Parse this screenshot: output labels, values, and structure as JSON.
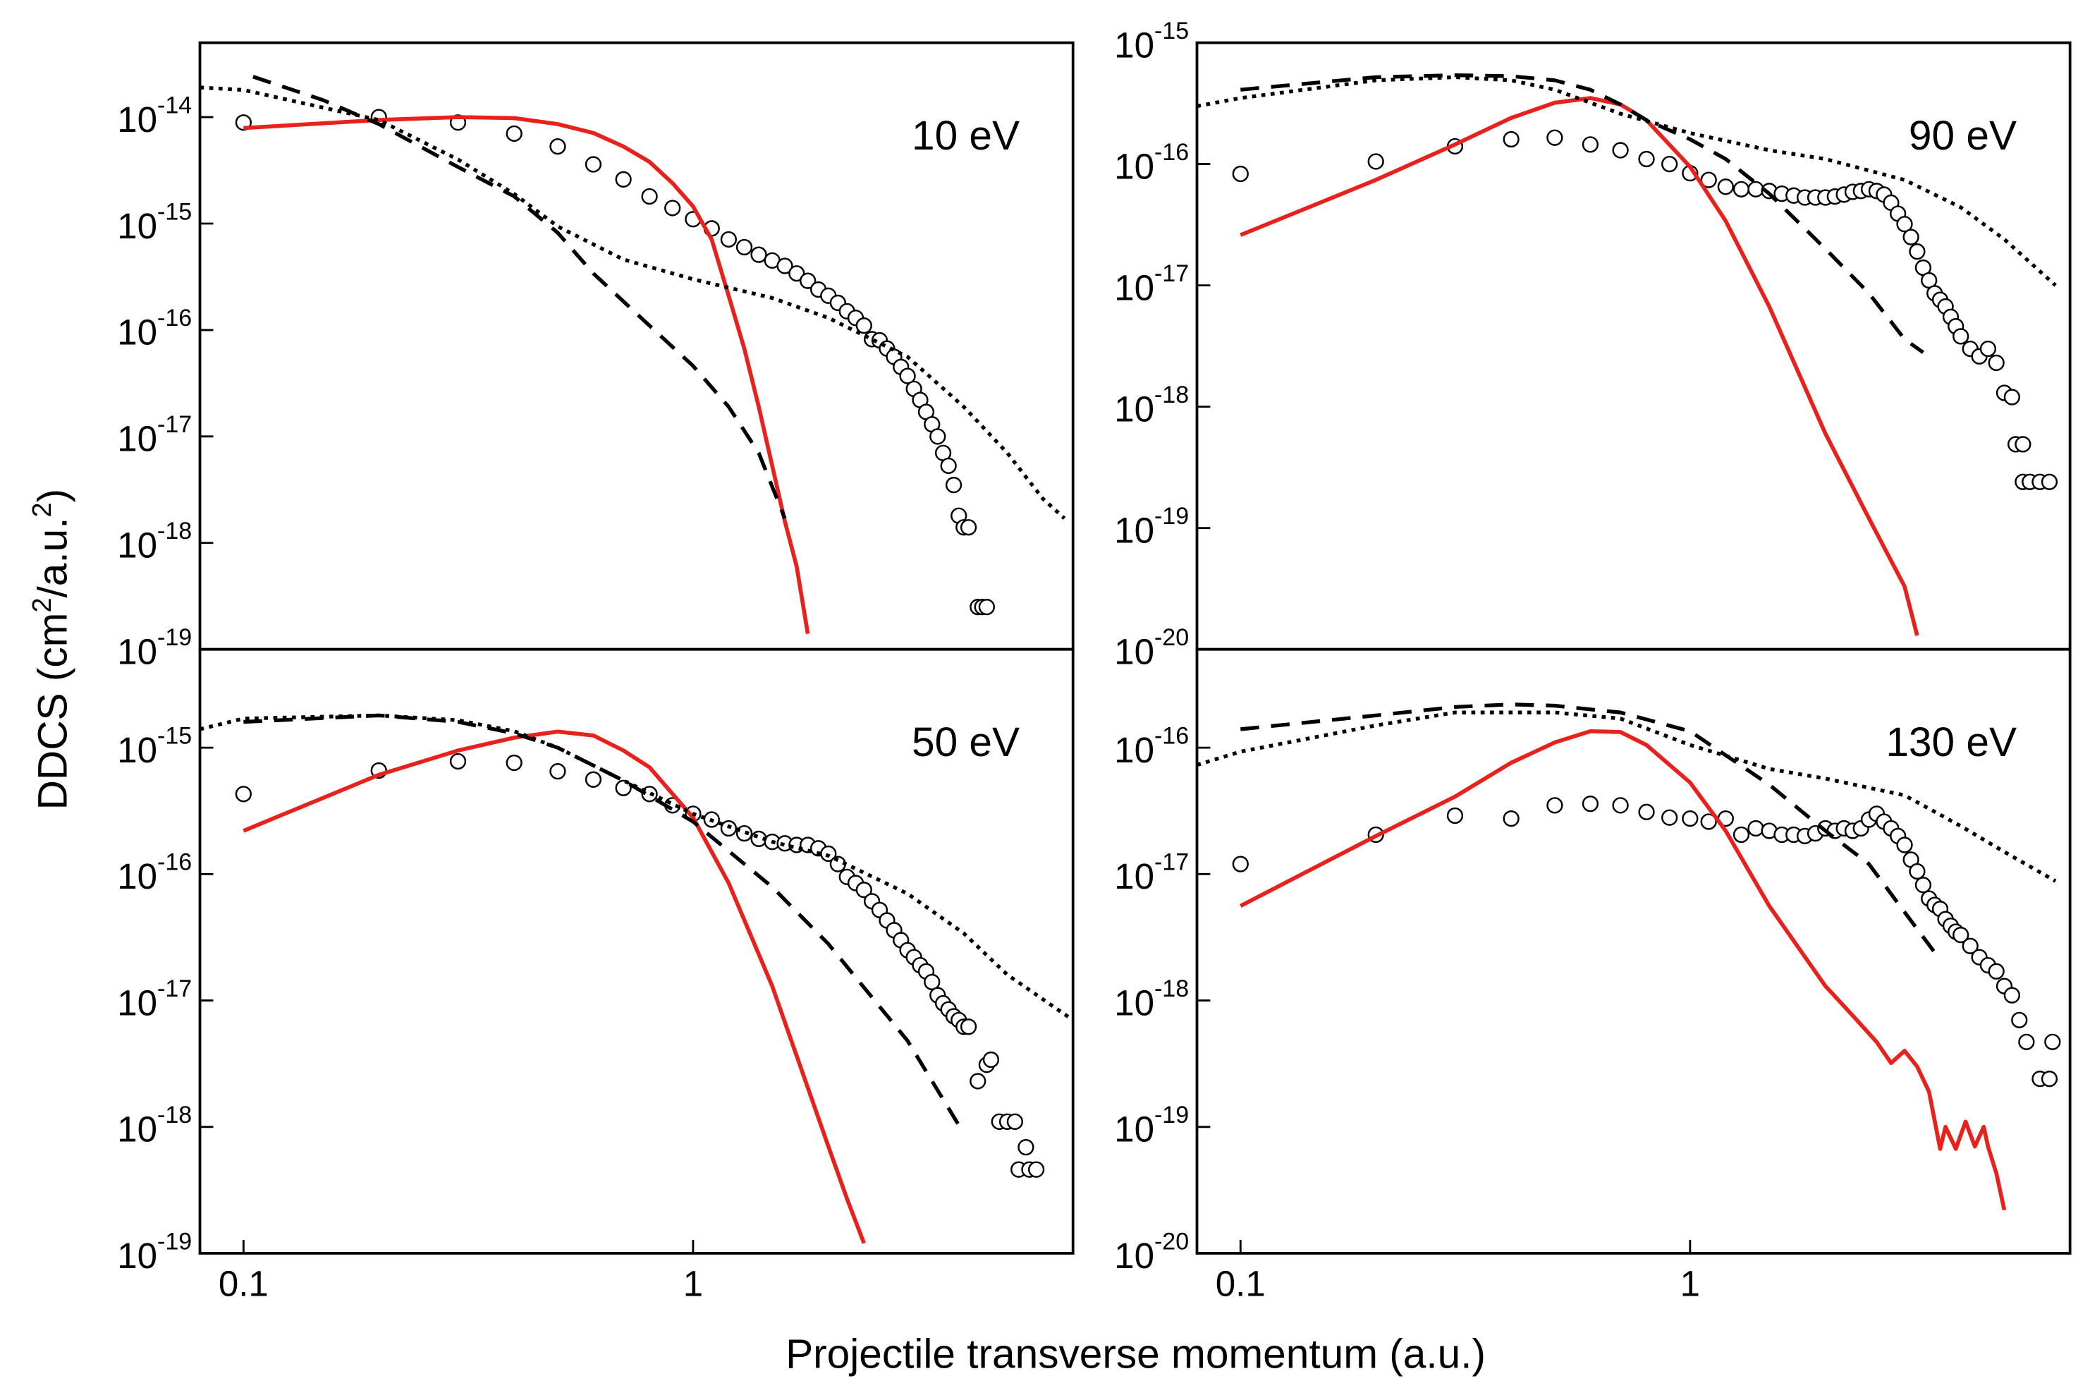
{
  "xlabel": "Projectile transverse momentum (a.u.)",
  "ylabel": [
    "DDCS (cm",
    "2",
    "/a.u.",
    "2",
    ")"
  ],
  "chart_data": [
    {
      "type": "line",
      "annotation": "10 eV",
      "log_x": true,
      "log_y": true,
      "xlim": [
        0.08,
        7
      ],
      "ylim": [
        1e-19,
        5e-14
      ],
      "yticks": [
        {
          "value": 1e-19,
          "label": "10",
          "sup": "-19"
        },
        {
          "value": 1e-18,
          "label": "10",
          "sup": "-18"
        },
        {
          "value": 1e-17,
          "label": "10",
          "sup": "-17"
        },
        {
          "value": 1e-16,
          "label": "10",
          "sup": "-16"
        },
        {
          "value": 1e-15,
          "label": "10",
          "sup": "-15"
        },
        {
          "value": 1e-14,
          "label": "10",
          "sup": "-14"
        }
      ],
      "series": [
        {
          "style": "markers",
          "color": "#000000",
          "x": [
            0.1,
            0.2,
            0.3,
            0.4,
            0.5,
            0.6,
            0.7,
            0.8,
            0.9,
            1.0,
            1.1,
            1.2,
            1.3,
            1.4,
            1.5,
            1.6,
            1.7,
            1.8,
            1.9,
            2.0,
            2.1,
            2.2,
            2.3,
            2.4,
            2.5,
            2.6,
            2.7,
            2.8,
            2.9,
            3.0,
            3.1,
            3.2,
            3.3,
            3.4,
            3.5,
            3.6,
            3.7,
            3.8,
            3.9,
            4.0,
            4.1,
            4.3,
            4.4,
            4.5
          ],
          "values": [
            8.9e-15,
            1e-14,
            8.9e-15,
            7e-15,
            5.3e-15,
            3.6e-15,
            2.6e-15,
            1.8e-15,
            1.4e-15,
            1.1e-15,
            9e-16,
            7.1e-16,
            6e-16,
            5.1e-16,
            4.5e-16,
            4e-16,
            3.4e-16,
            2.9e-16,
            2.4e-16,
            2.1e-16,
            1.8e-16,
            1.5e-16,
            1.3e-16,
            1.1e-16,
            8.2e-17,
            8e-17,
            6.7e-17,
            5.6e-17,
            4.5e-17,
            3.7e-17,
            2.8e-17,
            2.2e-17,
            1.7e-17,
            1.3e-17,
            1e-17,
            7e-18,
            5.3e-18,
            3.5e-18,
            1.8e-18,
            1.4e-18,
            1.4e-18,
            2.5e-19,
            2.5e-19,
            2.5e-19
          ]
        },
        {
          "style": "solid",
          "color": "#e8211c",
          "x": [
            0.1,
            0.2,
            0.3,
            0.4,
            0.5,
            0.6,
            0.7,
            0.8,
            0.9,
            1.0,
            1.1,
            1.2,
            1.3,
            1.4,
            1.5,
            1.6,
            1.7,
            1.8
          ],
          "values": [
            7.9e-15,
            9.4e-15,
            1e-14,
            9.8e-15,
            8.6e-15,
            7.1e-15,
            5.3e-15,
            3.8e-15,
            2.4e-15,
            1.45e-15,
            7.1e-16,
            2.1e-16,
            6.7e-17,
            1.9e-17,
            5.3e-18,
            1.6e-18,
            6e-19,
            1.4e-19
          ]
        },
        {
          "style": "dashed",
          "color": "#000000",
          "x": [
            0.105,
            0.15,
            0.2,
            0.3,
            0.4,
            0.5,
            0.6,
            0.8,
            1.0,
            1.2,
            1.4,
            1.6
          ],
          "values": [
            2.4e-14,
            1.45e-14,
            8.6e-15,
            3.4e-15,
            1.8e-15,
            8.2e-16,
            3.4e-16,
            1.1e-16,
            4.6e-17,
            1.9e-17,
            7e-18,
            1.7e-18
          ]
        },
        {
          "style": "dotted",
          "color": "#000000",
          "x": [
            0.08,
            0.1,
            0.2,
            0.3,
            0.4,
            0.5,
            0.7,
            1,
            1.5,
            2,
            3,
            4,
            5,
            6,
            6.7
          ],
          "values": [
            1.9e-14,
            1.8e-14,
            9.4e-15,
            4e-15,
            1.9e-15,
            9.4e-16,
            4.6e-16,
            3e-16,
            2e-16,
            1.3e-16,
            5.6e-17,
            1.9e-17,
            7e-18,
            2.6e-18,
            1.7e-18
          ]
        }
      ]
    },
    {
      "type": "line",
      "annotation": "90 eV",
      "log_x": true,
      "log_y": true,
      "xlim": [
        0.08,
        7
      ],
      "ylim": [
        1e-20,
        1e-15
      ],
      "yticks": [
        {
          "value": 1e-20,
          "label": "10",
          "sup": "-20"
        },
        {
          "value": 1e-19,
          "label": "10",
          "sup": "-19"
        },
        {
          "value": 1e-18,
          "label": "10",
          "sup": "-18"
        },
        {
          "value": 1e-17,
          "label": "10",
          "sup": "-17"
        },
        {
          "value": 1e-16,
          "label": "10",
          "sup": "-16"
        },
        {
          "value": 1e-15,
          "label": "10",
          "sup": "-15"
        }
      ],
      "series": [
        {
          "style": "markers",
          "color": "#000000",
          "x": [
            0.1,
            0.2,
            0.3,
            0.4,
            0.5,
            0.6,
            0.7,
            0.8,
            0.9,
            1.0,
            1.1,
            1.2,
            1.3,
            1.4,
            1.5,
            1.6,
            1.7,
            1.8,
            1.9,
            2.0,
            2.1,
            2.2,
            2.3,
            2.4,
            2.5,
            2.6,
            2.7,
            2.8,
            2.9,
            3.0,
            3.1,
            3.2,
            3.3,
            3.4,
            3.5,
            3.6,
            3.7,
            3.8,
            3.9,
            4.0,
            4.2,
            4.4,
            4.6,
            4.8,
            5.0,
            5.2,
            5.3,
            5.5,
            5.5,
            5.7,
            6.0,
            6.3
          ],
          "values": [
            8.3e-17,
            1.05e-16,
            1.4e-16,
            1.6e-16,
            1.65e-16,
            1.45e-16,
            1.3e-16,
            1.1e-16,
            1e-16,
            8.4e-17,
            7.4e-17,
            6.5e-17,
            6.2e-17,
            6.2e-17,
            6e-17,
            5.7e-17,
            5.5e-17,
            5.3e-17,
            5.3e-17,
            5.3e-17,
            5.4e-17,
            5.6e-17,
            5.9e-17,
            6e-17,
            6.2e-17,
            6e-17,
            5.6e-17,
            4.8e-17,
            3.9e-17,
            3.2e-17,
            2.5e-17,
            1.9e-17,
            1.4e-17,
            1.1e-17,
            8.6e-18,
            7.6e-18,
            6.7e-18,
            5.5e-18,
            4.6e-18,
            3.8e-18,
            3e-18,
            2.6e-18,
            3e-18,
            2.3e-18,
            1.3e-18,
            1.2e-18,
            4.9e-19,
            4.9e-19,
            2.4e-19,
            2.4e-19,
            2.4e-19,
            2.4e-19
          ]
        },
        {
          "style": "solid",
          "color": "#e8211c",
          "x": [
            0.1,
            0.2,
            0.3,
            0.4,
            0.5,
            0.6,
            0.7,
            0.8,
            1.0,
            1.2,
            1.5,
            2.0,
            2.5,
            3.0,
            3.2
          ],
          "values": [
            2.6e-17,
            7.4e-17,
            1.45e-16,
            2.4e-16,
            3.2e-16,
            3.5e-16,
            3.1e-16,
            2.3e-16,
            9.5e-17,
            3.4e-17,
            6.7e-18,
            6e-19,
            1.2e-19,
            3.3e-20,
            1.3e-20
          ]
        },
        {
          "style": "dashed",
          "color": "#000000",
          "x": [
            0.1,
            0.2,
            0.3,
            0.4,
            0.5,
            0.6,
            0.7,
            0.8,
            1.0,
            1.2,
            1.5,
            2.0,
            2.5,
            3.0,
            3.3
          ],
          "values": [
            4.1e-16,
            5.2e-16,
            5.4e-16,
            5.3e-16,
            4.9e-16,
            4.1e-16,
            3.1e-16,
            2.3e-16,
            1.6e-16,
            1.1e-16,
            5.7e-17,
            2e-17,
            8.6e-18,
            3.6e-18,
            2.8e-18
          ]
        },
        {
          "style": "dotted",
          "color": "#000000",
          "x": [
            0.08,
            0.1,
            0.2,
            0.3,
            0.4,
            0.5,
            0.7,
            1.0,
            1.5,
            2,
            3,
            4,
            5,
            6.5
          ],
          "values": [
            3e-16,
            3.5e-16,
            4.9e-16,
            5.2e-16,
            4.9e-16,
            4.1e-16,
            2.6e-16,
            1.8e-16,
            1.3e-16,
            1.1e-16,
            7.4e-17,
            4.4e-17,
            2.4e-17,
            1e-17
          ]
        }
      ]
    },
    {
      "type": "line",
      "annotation": "50 eV",
      "log_x": true,
      "log_y": true,
      "xlim": [
        0.08,
        7
      ],
      "ylim": [
        1e-19,
        6e-15
      ],
      "xticks": [
        0.1,
        1
      ],
      "yticks": [
        {
          "value": 1e-19,
          "label": "10",
          "sup": "-19"
        },
        {
          "value": 1e-18,
          "label": "10",
          "sup": "-18"
        },
        {
          "value": 1e-17,
          "label": "10",
          "sup": "-17"
        },
        {
          "value": 1e-16,
          "label": "10",
          "sup": "-16"
        },
        {
          "value": 1e-15,
          "label": "10",
          "sup": "-15"
        }
      ],
      "series": [
        {
          "style": "markers",
          "color": "#000000",
          "x": [
            0.1,
            0.2,
            0.3,
            0.4,
            0.5,
            0.6,
            0.7,
            0.8,
            0.9,
            1.0,
            1.1,
            1.2,
            1.3,
            1.4,
            1.5,
            1.6,
            1.7,
            1.8,
            1.9,
            2.0,
            2.1,
            2.2,
            2.3,
            2.4,
            2.5,
            2.6,
            2.7,
            2.8,
            2.9,
            3.0,
            3.1,
            3.2,
            3.3,
            3.4,
            3.5,
            3.6,
            3.7,
            3.8,
            3.9,
            4.0,
            4.1,
            4.3,
            4.5,
            4.6,
            4.8,
            5.0,
            5.2,
            5.5,
            5.3,
            5.6,
            5.8
          ],
          "values": [
            4.3e-16,
            6.6e-16,
            7.8e-16,
            7.6e-16,
            6.5e-16,
            5.6e-16,
            4.8e-16,
            4.3e-16,
            3.5e-16,
            3e-16,
            2.7e-16,
            2.3e-16,
            2.1e-16,
            1.9e-16,
            1.8e-16,
            1.75e-16,
            1.7e-16,
            1.7e-16,
            1.6e-16,
            1.45e-16,
            1.2e-16,
            9.5e-17,
            8.5e-17,
            7.5e-17,
            6.1e-17,
            5.2e-17,
            4.3e-17,
            3.6e-17,
            3e-17,
            2.5e-17,
            2.2e-17,
            1.9e-17,
            1.7e-17,
            1.4e-17,
            1.1e-17,
            9.5e-18,
            8.5e-18,
            7.5e-18,
            7e-18,
            6.2e-18,
            6.2e-18,
            2.3e-18,
            3.1e-18,
            3.4e-18,
            1.1e-18,
            1.1e-18,
            1.1e-18,
            6.9e-19,
            4.6e-19,
            4.6e-19,
            4.6e-19
          ]
        },
        {
          "style": "solid",
          "color": "#e8211c",
          "x": [
            0.1,
            0.2,
            0.3,
            0.4,
            0.5,
            0.6,
            0.7,
            0.8,
            1.0,
            1.2,
            1.5,
            2.0,
            2.2,
            2.4
          ],
          "values": [
            2.2e-16,
            6.1e-16,
            9.5e-16,
            1.2e-15,
            1.34e-15,
            1.25e-15,
            9.5e-16,
            7e-16,
            2.8e-16,
            8.5e-17,
            1.3e-17,
            7e-19,
            2.7e-19,
            1.2e-19
          ]
        },
        {
          "style": "dashed",
          "color": "#000000",
          "x": [
            0.1,
            0.2,
            0.3,
            0.4,
            0.5,
            0.7,
            1.0,
            1.5,
            2.0,
            3.0,
            4.0
          ],
          "values": [
            1.6e-15,
            1.8e-15,
            1.6e-15,
            1.3e-15,
            1e-15,
            5.5e-16,
            2.6e-16,
            7.9e-17,
            2.8e-17,
            4.8e-18,
            8.9e-19
          ]
        },
        {
          "style": "dotted",
          "color": "#000000",
          "x": [
            0.08,
            0.1,
            0.2,
            0.3,
            0.4,
            0.5,
            0.7,
            1.0,
            1.5,
            2,
            3,
            4,
            5,
            7
          ],
          "values": [
            1.4e-15,
            1.7e-15,
            1.8e-15,
            1.65e-15,
            1.35e-15,
            1e-15,
            5.5e-16,
            3e-16,
            1.8e-16,
            1.4e-16,
            7e-17,
            3.4e-17,
            1.6e-17,
            7e-18
          ]
        }
      ]
    },
    {
      "type": "line",
      "annotation": "130 eV",
      "log_x": true,
      "log_y": true,
      "xlim": [
        0.08,
        7
      ],
      "ylim": [
        1e-20,
        6e-16
      ],
      "xticks": [
        0.1,
        1
      ],
      "yticks": [
        {
          "value": 1e-20,
          "label": "10",
          "sup": "-20"
        },
        {
          "value": 1e-19,
          "label": "10",
          "sup": "-19"
        },
        {
          "value": 1e-18,
          "label": "10",
          "sup": "-18"
        },
        {
          "value": 1e-17,
          "label": "10",
          "sup": "-17"
        },
        {
          "value": 1e-16,
          "label": "10",
          "sup": "-16"
        }
      ],
      "series": [
        {
          "style": "markers",
          "color": "#000000",
          "x": [
            0.1,
            0.2,
            0.3,
            0.4,
            0.5,
            0.6,
            0.7,
            0.8,
            0.9,
            1.0,
            1.1,
            1.2,
            1.3,
            1.4,
            1.5,
            1.6,
            1.7,
            1.8,
            1.9,
            2.0,
            2.1,
            2.2,
            2.3,
            2.4,
            2.5,
            2.6,
            2.7,
            2.8,
            2.9,
            3.0,
            3.1,
            3.2,
            3.3,
            3.4,
            3.5,
            3.6,
            3.7,
            3.8,
            3.9,
            4.0,
            4.2,
            4.4,
            4.6,
            4.8,
            5.0,
            5.2,
            5.4,
            5.6,
            6.0,
            6.3,
            6.4
          ],
          "values": [
            1.2e-17,
            2.05e-17,
            2.9e-17,
            2.75e-17,
            3.5e-17,
            3.6e-17,
            3.5e-17,
            3.1e-17,
            2.8e-17,
            2.75e-17,
            2.6e-17,
            2.75e-17,
            2.05e-17,
            2.3e-17,
            2.2e-17,
            2.05e-17,
            2.05e-17,
            2e-17,
            2.1e-17,
            2.3e-17,
            2.2e-17,
            2.3e-17,
            2.2e-17,
            2.3e-17,
            2.7e-17,
            3e-17,
            2.6e-17,
            2.3e-17,
            2e-17,
            1.7e-17,
            1.3e-17,
            1.05e-17,
            8.2e-18,
            6.4e-18,
            5.7e-18,
            5.3e-18,
            4.4e-18,
            3.9e-18,
            3.5e-18,
            3.3e-18,
            2.7e-18,
            2.2e-18,
            1.9e-18,
            1.7e-18,
            1.3e-18,
            1.1e-18,
            7e-19,
            4.7e-19,
            2.4e-19,
            2.4e-19,
            4.7e-19
          ]
        },
        {
          "style": "solid",
          "color": "#e8211c",
          "x": [
            0.1,
            0.2,
            0.3,
            0.4,
            0.5,
            0.6,
            0.7,
            0.8,
            1.0,
            1.2,
            1.5,
            2.0,
            2.3,
            2.6,
            2.8,
            3.0,
            3.2,
            3.4,
            3.6,
            3.7,
            3.9,
            4.1,
            4.3,
            4.5,
            4.6,
            4.8,
            5.0
          ],
          "values": [
            5.6e-18,
            2e-17,
            4.1e-17,
            7.6e-17,
            1.1e-16,
            1.35e-16,
            1.33e-16,
            1.05e-16,
            5.3e-17,
            2.2e-17,
            5.6e-18,
            1.3e-18,
            7.6e-19,
            4.7e-19,
            3.2e-19,
            4e-19,
            3e-19,
            1.9e-19,
            6.7e-20,
            1e-19,
            6.7e-20,
            1.1e-19,
            7e-20,
            1e-19,
            7e-20,
            4.3e-20,
            2.2e-20
          ]
        },
        {
          "style": "dashed",
          "color": "#000000",
          "x": [
            0.1,
            0.2,
            0.3,
            0.4,
            0.5,
            0.7,
            1.0,
            1.5,
            2.0,
            2.5,
            3.0,
            3.5
          ],
          "values": [
            1.4e-16,
            1.8e-16,
            2.1e-16,
            2.2e-16,
            2.15e-16,
            1.9e-16,
            1.35e-16,
            5.1e-17,
            2.2e-17,
            1.2e-17,
            5e-18,
            2.4e-18
          ]
        },
        {
          "style": "dotted",
          "color": "#000000",
          "x": [
            0.08,
            0.1,
            0.2,
            0.3,
            0.5,
            0.7,
            1.0,
            1.5,
            2,
            3,
            4,
            5,
            6.5
          ],
          "values": [
            7.3e-17,
            9.3e-17,
            1.5e-16,
            1.9e-16,
            1.9e-16,
            1.7e-16,
            1.05e-16,
            6.8e-17,
            5.7e-17,
            4.2e-17,
            2.4e-17,
            1.5e-17,
            8.8e-18
          ]
        }
      ]
    }
  ]
}
